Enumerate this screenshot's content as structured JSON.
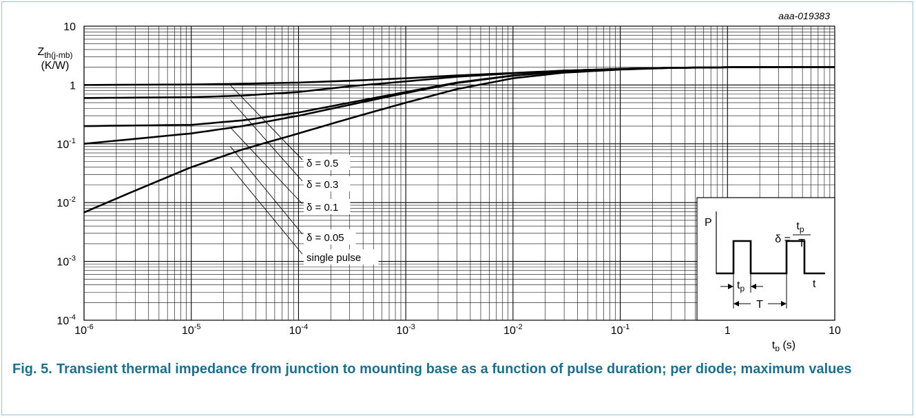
{
  "chart_data": {
    "type": "line",
    "figure_id": "aaa-019383",
    "x_scale": "log",
    "y_scale": "log",
    "xlim": [
      1e-06,
      10
    ],
    "ylim": [
      0.0001,
      10
    ],
    "grid": true,
    "ylabel": {
      "main": "Z",
      "sub": "th(j-mb)",
      "unit": "(K/W)"
    },
    "xlabel": {
      "main": "t",
      "sub": "p",
      "unit": "(s)"
    },
    "x_ticks": [
      {
        "base": "10",
        "exp": "-6"
      },
      {
        "base": "10",
        "exp": "-5"
      },
      {
        "base": "10",
        "exp": "-4"
      },
      {
        "base": "10",
        "exp": "-3"
      },
      {
        "base": "10",
        "exp": "-2"
      },
      {
        "base": "10",
        "exp": "-1"
      },
      {
        "base": "1",
        "exp": ""
      },
      {
        "base": "10",
        "exp": ""
      }
    ],
    "y_ticks": [
      {
        "base": "10",
        "exp": ""
      },
      {
        "base": "1",
        "exp": ""
      },
      {
        "base": "10",
        "exp": "-1"
      },
      {
        "base": "10",
        "exp": "-2"
      },
      {
        "base": "10",
        "exp": "-3"
      },
      {
        "base": "10",
        "exp": "-4"
      }
    ],
    "series": [
      {
        "name": "δ = 0.5",
        "x": [
          1e-06,
          1e-05,
          3e-05,
          0.0001,
          0.0003,
          0.001,
          0.003,
          0.01,
          0.03,
          0.1,
          0.3,
          1,
          3,
          10
        ],
        "y": [
          1.0,
          1.02,
          1.05,
          1.1,
          1.18,
          1.3,
          1.45,
          1.6,
          1.75,
          1.88,
          1.96,
          2.0,
          2.02,
          2.02
        ]
      },
      {
        "name": "δ = 0.3",
        "x": [
          1e-06,
          1e-05,
          3e-05,
          0.0001,
          0.0003,
          0.001,
          0.003,
          0.01,
          0.03,
          0.1,
          0.3,
          1,
          3,
          10
        ],
        "y": [
          0.6,
          0.62,
          0.66,
          0.76,
          0.95,
          1.15,
          1.38,
          1.58,
          1.75,
          1.88,
          1.96,
          2.0,
          2.02,
          2.02
        ]
      },
      {
        "name": "δ = 0.1",
        "x": [
          1e-06,
          1e-05,
          3e-05,
          0.0001,
          0.0003,
          0.001,
          0.003,
          0.01,
          0.03,
          0.1,
          0.3,
          1,
          3,
          10
        ],
        "y": [
          0.2,
          0.21,
          0.25,
          0.34,
          0.5,
          0.76,
          1.1,
          1.45,
          1.7,
          1.86,
          1.96,
          2.0,
          2.02,
          2.02
        ]
      },
      {
        "name": "δ = 0.05",
        "x": [
          1e-06,
          1e-05,
          3e-05,
          0.0001,
          0.0003,
          0.001,
          0.003,
          0.01,
          0.03,
          0.1,
          0.3,
          1,
          3,
          10
        ],
        "y": [
          0.1,
          0.15,
          0.2,
          0.3,
          0.46,
          0.73,
          1.08,
          1.44,
          1.7,
          1.86,
          1.96,
          2.0,
          2.02,
          2.02
        ]
      },
      {
        "name": "single pulse",
        "x": [
          1e-06,
          3e-06,
          1e-05,
          3e-05,
          0.0001,
          0.0003,
          0.001,
          0.003,
          0.01,
          0.03,
          0.1,
          0.3,
          1,
          3,
          10
        ],
        "y": [
          0.0068,
          0.016,
          0.04,
          0.08,
          0.15,
          0.27,
          0.5,
          0.85,
          1.3,
          1.62,
          1.83,
          1.95,
          2.0,
          2.02,
          2.02
        ]
      }
    ],
    "annotations": [
      {
        "text": "δ = 0.5",
        "points_to": [
          2e-05,
          1.1
        ]
      },
      {
        "text": "δ = 0.3",
        "points_to": [
          2e-05,
          0.62
        ]
      },
      {
        "text": "δ = 0.1",
        "points_to": [
          2e-05,
          0.21
        ]
      },
      {
        "text": "δ = 0.05",
        "points_to": [
          2e-05,
          0.1
        ]
      },
      {
        "text": "single pulse",
        "points_to": [
          2e-05,
          0.045
        ]
      }
    ],
    "inset": {
      "p_label": "P",
      "t_label": "t",
      "delta": "δ =",
      "frac_num_main": "t",
      "frac_num_sub": "p",
      "frac_den": "T",
      "tp_main": "t",
      "tp_sub": "p",
      "period": "T"
    }
  },
  "caption": {
    "number": "Fig. 5.",
    "text": "Transient thermal impedance from junction to mounting base as a function of pulse duration; per diode; maximum values"
  }
}
